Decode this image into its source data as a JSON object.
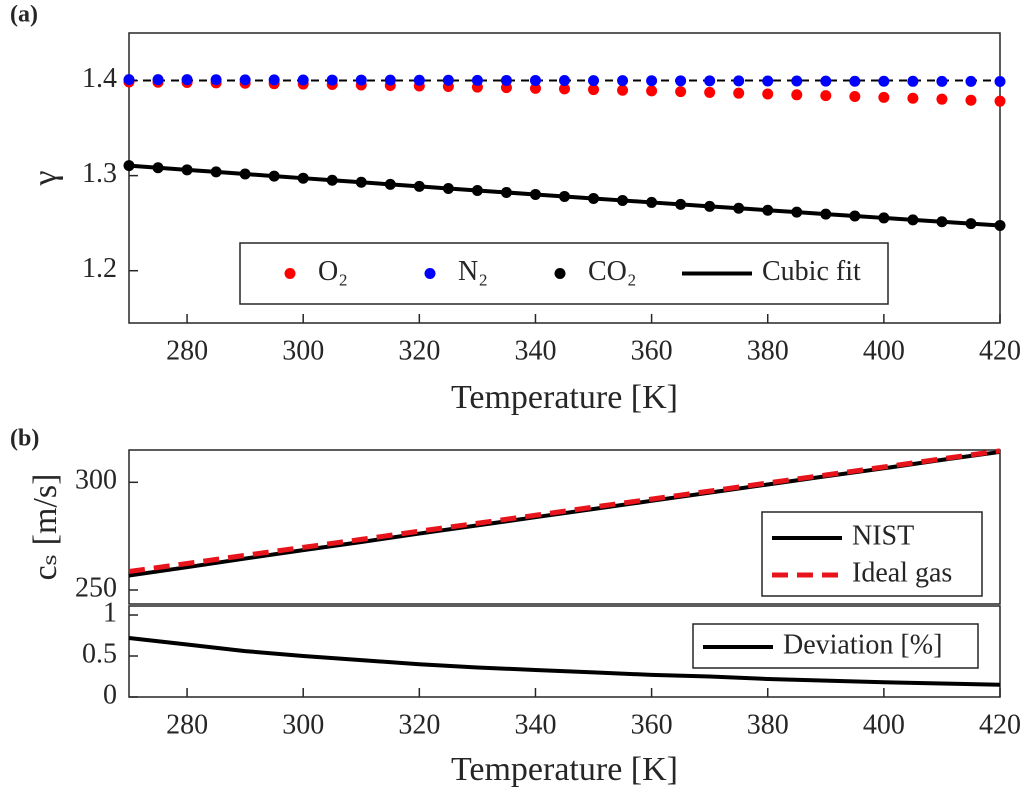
{
  "chart_data": [
    {
      "type": "scatter",
      "panel_label": "(a)",
      "xlabel": "Temperature [K]",
      "ylabel": "γ",
      "xlim": [
        270,
        420
      ],
      "xticks": [
        280,
        300,
        320,
        340,
        360,
        380,
        400,
        420
      ],
      "ylim": [
        1.145,
        1.45
      ],
      "yticks": [
        1.2,
        1.3,
        1.4
      ],
      "x": [
        270,
        275,
        280,
        285,
        290,
        295,
        300,
        305,
        310,
        315,
        320,
        325,
        330,
        335,
        340,
        345,
        350,
        355,
        360,
        365,
        370,
        375,
        380,
        385,
        390,
        395,
        400,
        405,
        410,
        415,
        420
      ],
      "series": [
        {
          "x": [
            270,
            420
          ],
          "values": [
            1.4,
            1.4
          ],
          "color": "#000000",
          "style": "dashed"
        },
        {
          "name": "O₂",
          "color": "#ff0000",
          "style": "dots",
          "values": [
            1.3985,
            1.3982,
            1.3979,
            1.3975,
            1.3971,
            1.3967,
            1.3963,
            1.3958,
            1.3953,
            1.3948,
            1.3943,
            1.3937,
            1.3931,
            1.3925,
            1.3918,
            1.3912,
            1.3905,
            1.3898,
            1.3891,
            1.3883,
            1.3875,
            1.3867,
            1.3859,
            1.385,
            1.3841,
            1.3832,
            1.3823,
            1.3814,
            1.3804,
            1.3793,
            1.3783
          ]
        },
        {
          "name": "N₂",
          "color": "#0000ff",
          "style": "dots",
          "values": [
            1.401,
            1.4009,
            1.4009,
            1.4008,
            1.4007,
            1.4007,
            1.4006,
            1.4005,
            1.4005,
            1.4004,
            1.4003,
            1.4003,
            1.4002,
            1.4001,
            1.4001,
            1.4,
            1.3999,
            1.3999,
            1.3998,
            1.3997,
            1.3997,
            1.3996,
            1.3995,
            1.3995,
            1.3994,
            1.3993,
            1.3993,
            1.3992,
            1.3991,
            1.3991,
            1.399
          ]
        },
        {
          "name": "CO₂",
          "color": "#000000",
          "style": "dots",
          "values": [
            1.3105,
            1.3083,
            1.3061,
            1.3039,
            1.3017,
            1.2995,
            1.2973,
            1.2951,
            1.293,
            1.2908,
            1.2887,
            1.2865,
            1.2844,
            1.2823,
            1.2802,
            1.2781,
            1.276,
            1.2739,
            1.2718,
            1.2698,
            1.2677,
            1.2657,
            1.2636,
            1.2616,
            1.2595,
            1.2575,
            1.2555,
            1.2535,
            1.2515,
            1.2495,
            1.2476
          ]
        },
        {
          "name": "Cubic fit",
          "color": "#000000",
          "style": "solid",
          "values": [
            1.3105,
            1.3083,
            1.3061,
            1.3039,
            1.3017,
            1.2995,
            1.2973,
            1.2951,
            1.293,
            1.2908,
            1.2887,
            1.2865,
            1.2844,
            1.2823,
            1.2802,
            1.2781,
            1.276,
            1.2739,
            1.2718,
            1.2698,
            1.2677,
            1.2657,
            1.2636,
            1.2616,
            1.2595,
            1.2575,
            1.2555,
            1.2535,
            1.2515,
            1.2495,
            1.2476
          ]
        }
      ]
    },
    {
      "type": "line",
      "panel_label": "(b)",
      "ylabel": "cₛ [m/s]",
      "xlim": [
        270,
        420
      ],
      "ylim": [
        243.5,
        315
      ],
      "yticks": [
        250,
        300
      ],
      "x": [
        270,
        280,
        290,
        300,
        310,
        320,
        330,
        340,
        350,
        360,
        370,
        380,
        390,
        400,
        410,
        420
      ],
      "series": [
        {
          "name": "NIST",
          "color": "#000000",
          "style": "solid",
          "values": [
            256.7,
            260.6,
            264.6,
            268.5,
            272.3,
            276.2,
            280.0,
            283.8,
            287.6,
            291.4,
            295.2,
            299.0,
            302.8,
            306.5,
            310.4,
            314.1
          ]
        },
        {
          "name": "Ideal gas",
          "color": "#e8141b",
          "style": "dashed",
          "values": [
            258.6,
            262.3,
            266.1,
            269.8,
            273.5,
            277.3,
            281.0,
            284.7,
            288.5,
            292.2,
            295.9,
            299.7,
            303.4,
            307.1,
            310.9,
            314.6
          ]
        }
      ]
    },
    {
      "type": "line",
      "xlabel": "Temperature [K]",
      "xlim": [
        270,
        420
      ],
      "xticks": [
        280,
        300,
        320,
        340,
        360,
        380,
        400,
        420
      ],
      "ylim": [
        0,
        1.11
      ],
      "yticks": [
        0,
        0.5,
        1
      ],
      "x": [
        270,
        280,
        290,
        300,
        310,
        320,
        330,
        340,
        350,
        360,
        370,
        380,
        390,
        400,
        410,
        420
      ],
      "series": [
        {
          "name": "Deviation [%]",
          "color": "#000000",
          "style": "solid",
          "values": [
            0.72,
            0.64,
            0.56,
            0.5,
            0.45,
            0.4,
            0.36,
            0.33,
            0.3,
            0.27,
            0.25,
            0.22,
            0.2,
            0.18,
            0.165,
            0.15
          ]
        }
      ]
    }
  ]
}
